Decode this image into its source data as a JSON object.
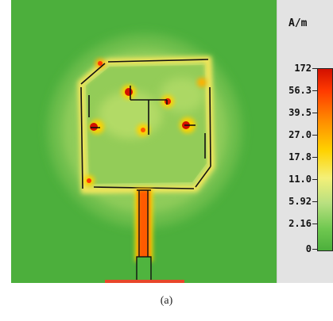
{
  "legend": {
    "unit": "A/m",
    "ticks": [
      "172",
      "56.3",
      "39.5",
      "27.0",
      "17.8",
      "11.0",
      "5.92",
      "2.16",
      "0"
    ]
  },
  "caption": "(a)",
  "colors": {
    "background_field": "#4caf3c",
    "hot": "#d21000",
    "warm": "#ffd200",
    "ground_plane": "#e8462a",
    "legend_panel": "#e3e3e3"
  }
}
